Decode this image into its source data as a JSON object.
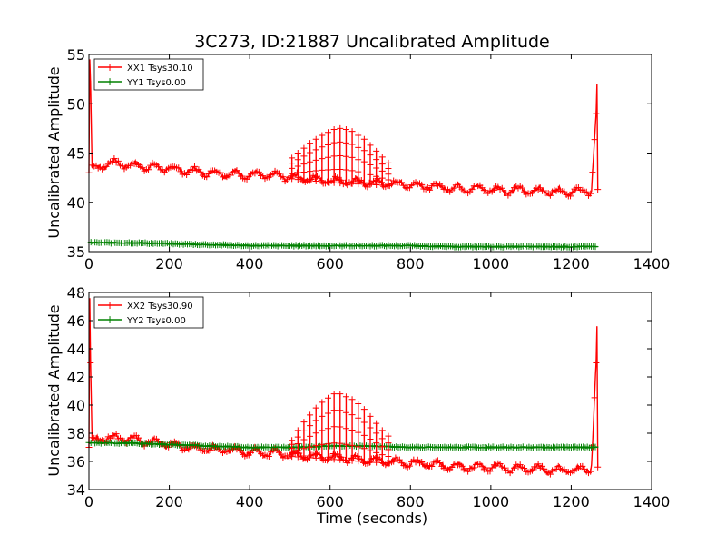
{
  "chart_data": [
    {
      "type": "line",
      "title": "3C273, ID:21887 Uncalibrated Amplitude",
      "xlabel": "",
      "ylabel": "Uncalibrated Amplitude",
      "xlim": [
        0,
        1400
      ],
      "ylim": [
        35,
        55
      ],
      "xticks": [
        "0",
        "200",
        "400",
        "600",
        "800",
        "1000",
        "1200",
        "1400"
      ],
      "yticks": [
        "35",
        "40",
        "45",
        "50",
        "55"
      ],
      "legend_position": "top-left",
      "grid": false,
      "series": [
        {
          "name": "XX1 Tsys30.10",
          "color": "#ff0000",
          "marker": "+",
          "x": [
            0,
            2,
            4,
            8,
            20,
            50,
            100,
            150,
            200,
            250,
            300,
            350,
            400,
            450,
            500,
            550,
            600,
            650,
            700,
            750,
            800,
            850,
            900,
            950,
            1000,
            1050,
            1100,
            1150,
            1200,
            1250,
            1262,
            1264,
            1266
          ],
          "y": [
            43,
            54.5,
            52,
            43.5,
            43.5,
            44,
            43.8,
            43.6,
            43.4,
            43.2,
            43,
            42.9,
            42.8,
            42.7,
            42.6,
            42.4,
            42.2,
            42.1,
            42,
            41.9,
            41.8,
            41.6,
            41.5,
            41.4,
            41.3,
            41.2,
            41.2,
            41.1,
            41.1,
            41.1,
            49,
            52,
            41.3
          ]
        },
        {
          "name": "YY1 Tsys0.00",
          "color": "#008000",
          "marker": "+",
          "x": [
            0,
            100,
            200,
            300,
            400,
            500,
            600,
            700,
            800,
            900,
            1000,
            1100,
            1200,
            1266
          ],
          "y": [
            35.9,
            35.9,
            35.8,
            35.7,
            35.6,
            35.6,
            35.6,
            35.6,
            35.6,
            35.5,
            35.5,
            35.5,
            35.5,
            35.5
          ]
        }
      ],
      "spikes": {
        "series": "XX1 Tsys30.10",
        "x": [
          505,
          520,
          535,
          550,
          565,
          580,
          595,
          610,
          625,
          640,
          655,
          670,
          685,
          700,
          715,
          730,
          745
        ],
        "y_top": [
          44.5,
          45,
          45.5,
          46,
          46.4,
          46.8,
          47.1,
          47.4,
          47.5,
          47.4,
          47.2,
          46.8,
          46.4,
          45.8,
          45.2,
          44.6,
          44
        ]
      }
    },
    {
      "type": "line",
      "title": "",
      "xlabel": "Time (seconds)",
      "ylabel": "Uncalibrated Amplitude",
      "xlim": [
        0,
        1400
      ],
      "ylim": [
        34,
        48
      ],
      "xticks": [
        "0",
        "200",
        "400",
        "600",
        "800",
        "1000",
        "1200",
        "1400"
      ],
      "yticks": [
        "34",
        "36",
        "38",
        "40",
        "42",
        "44",
        "46",
        "48"
      ],
      "legend_position": "top-left",
      "grid": false,
      "series": [
        {
          "name": "XX2 Tsys30.90",
          "color": "#ff0000",
          "marker": "+",
          "x": [
            0,
            2,
            4,
            8,
            20,
            50,
            100,
            150,
            200,
            250,
            300,
            350,
            400,
            450,
            500,
            550,
            600,
            650,
            700,
            750,
            800,
            850,
            900,
            950,
            1000,
            1050,
            1100,
            1150,
            1200,
            1250,
            1262,
            1264,
            1266
          ],
          "y": [
            37,
            47.6,
            43,
            37.5,
            37.6,
            37.7,
            37.6,
            37.4,
            37.2,
            37,
            36.9,
            36.8,
            36.7,
            36.6,
            36.5,
            36.4,
            36.3,
            36.2,
            36.1,
            36,
            35.9,
            35.8,
            35.7,
            35.6,
            35.6,
            35.5,
            35.5,
            35.4,
            35.4,
            35.5,
            43,
            45.6,
            35.6
          ]
        },
        {
          "name": "YY2 Tsys0.00",
          "color": "#008000",
          "marker": "+",
          "x": [
            0,
            100,
            200,
            300,
            400,
            500,
            600,
            700,
            800,
            900,
            1000,
            1100,
            1200,
            1266
          ],
          "y": [
            37.3,
            37.3,
            37.2,
            37.1,
            37.0,
            37.0,
            37.1,
            37.1,
            37.0,
            37.0,
            37.0,
            37.0,
            37.0,
            37.0
          ]
        }
      ],
      "spikes": {
        "series": "XX2 Tsys30.90",
        "x": [
          505,
          520,
          535,
          550,
          565,
          580,
          595,
          610,
          625,
          640,
          655,
          670,
          685,
          700,
          715,
          730,
          745
        ],
        "y_top": [
          37.5,
          38.2,
          38.8,
          39.3,
          39.8,
          40.2,
          40.5,
          40.8,
          40.8,
          40.6,
          40.4,
          40.1,
          39.7,
          39.2,
          38.7,
          38.2,
          37.8
        ]
      }
    }
  ]
}
